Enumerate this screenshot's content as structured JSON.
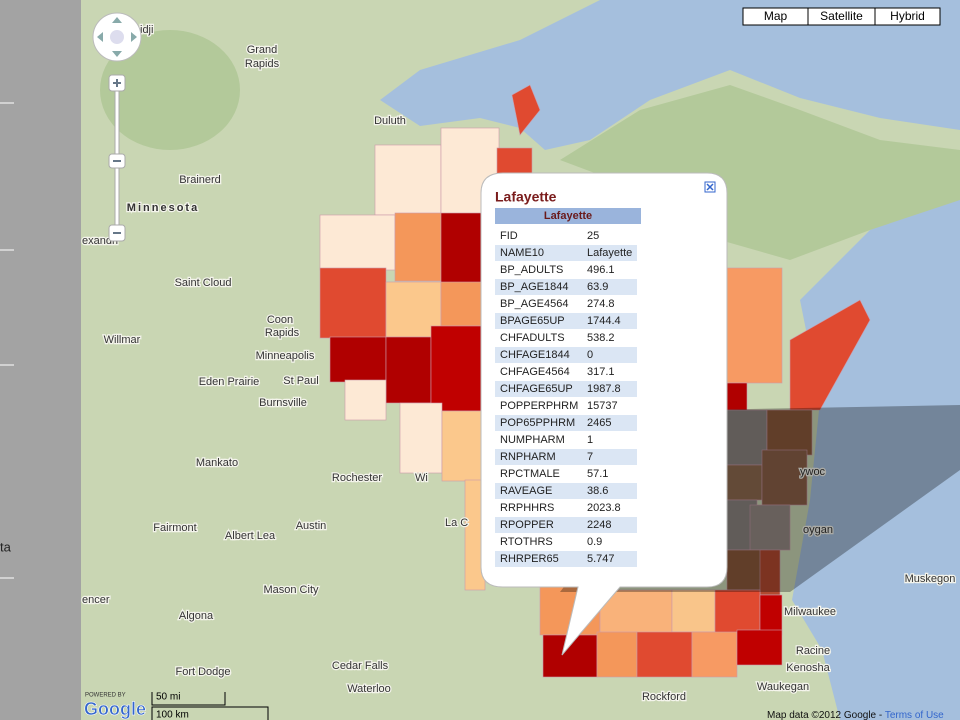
{
  "sidebar": {
    "label": "ta"
  },
  "map_controls": {
    "buttons": [
      "Map",
      "Satellite",
      "Hybrid"
    ]
  },
  "place_labels": [
    "idji",
    "Grand",
    "Rapids",
    "Duluth",
    "Brainerd",
    "Minnesota",
    "exandri",
    "Saint Cloud",
    "Coon",
    "Rapids",
    "Willmar",
    "Minneapolis",
    "Eden Prairie",
    "St Paul",
    "Burnsville",
    "Mankato",
    "Rochester",
    "Austin",
    "Fairmont",
    "Albert Lea",
    "Mason City",
    "encer",
    "Algona",
    "Fort Dodge",
    "Cedar Falls",
    "Waterloo",
    "La C",
    "Wi",
    "Rockford",
    "Milwaukee",
    "Racine",
    "Kenosha",
    "Waukegan",
    "Muskegon",
    "ywoc",
    "oygan"
  ],
  "info_window": {
    "title": "Lafayette",
    "table_header": "Lafayette",
    "rows": [
      [
        "FID",
        "25"
      ],
      [
        "NAME10",
        "Lafayette"
      ],
      [
        "BP_ADULTS",
        "496.1"
      ],
      [
        "BP_AGE1844",
        "63.9"
      ],
      [
        "BP_AGE4564",
        "274.8"
      ],
      [
        "BPAGE65UP",
        "1744.4"
      ],
      [
        "CHFADULTS",
        "538.2"
      ],
      [
        "CHFAGE1844",
        "0"
      ],
      [
        "CHFAGE4564",
        "317.1"
      ],
      [
        "CHFAGE65UP",
        "1987.8"
      ],
      [
        "POPPERPHRM",
        "15737"
      ],
      [
        "POP65PPHRM",
        "2465"
      ],
      [
        "NUMPHARM",
        "1"
      ],
      [
        "RNPHARM",
        "7"
      ],
      [
        "RPCTMALE",
        "57.1"
      ],
      [
        "RAVEAGE",
        "38.6"
      ],
      [
        "RRPHHRS",
        "2023.8"
      ],
      [
        "RPOPPER",
        "2248"
      ],
      [
        "RTOTHRS",
        "0.9"
      ],
      [
        "RHRPER65",
        "5.747"
      ]
    ]
  },
  "scale": {
    "miles": "50 mi",
    "km": "100 km"
  },
  "footer": {
    "logo_caption": "POWERED BY",
    "logo": "Google",
    "attribution": "Map data ©2012 Google - ",
    "terms": "Terms of Use"
  }
}
